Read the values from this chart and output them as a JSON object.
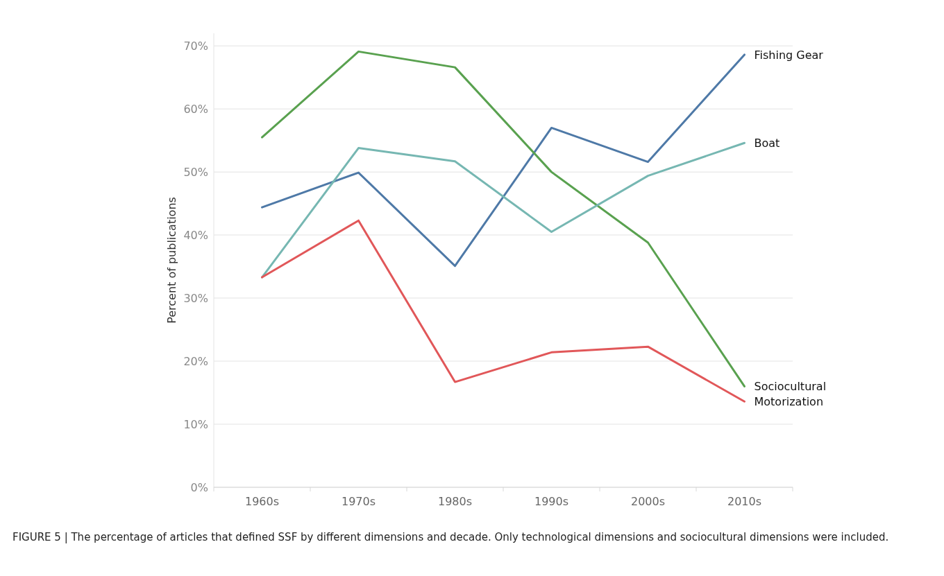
{
  "chart_data": {
    "type": "line",
    "ylabel": "Percent of publications",
    "categories": [
      "1960s",
      "1970s",
      "1980s",
      "1990s",
      "2000s",
      "2010s"
    ],
    "series": [
      {
        "name": "Fishing Gear",
        "color": "#4e79a7",
        "values": [
          44.4,
          49.9,
          35.1,
          57.0,
          51.6,
          68.6
        ]
      },
      {
        "name": "Sociocultural",
        "color": "#59a14f",
        "values": [
          55.5,
          69.1,
          66.6,
          50.0,
          38.8,
          16.0
        ]
      },
      {
        "name": "Boat",
        "color": "#76b7b2",
        "values": [
          33.3,
          53.8,
          51.7,
          40.5,
          49.4,
          54.6
        ]
      },
      {
        "name": "Motorization",
        "color": "#e15759",
        "values": [
          33.3,
          42.3,
          16.7,
          21.4,
          22.3,
          13.6
        ]
      }
    ],
    "ylim": [
      0,
      72
    ],
    "yticks": [
      {
        "value": 0,
        "label": "0%"
      },
      {
        "value": 10,
        "label": "10%"
      },
      {
        "value": 20,
        "label": "20%"
      },
      {
        "value": 30,
        "label": "30%"
      },
      {
        "value": 40,
        "label": "40%"
      },
      {
        "value": 50,
        "label": "50%"
      },
      {
        "value": 60,
        "label": "60%"
      },
      {
        "value": 70,
        "label": "70%"
      }
    ],
    "grid": "y",
    "marker": "none",
    "line_style": "solid",
    "annotations": [
      "FIGURE 5 | The percentage of articles that defined SSF by different dimensions and decade. Only technological dimensions and sociocultural dimensions were included."
    ]
  }
}
